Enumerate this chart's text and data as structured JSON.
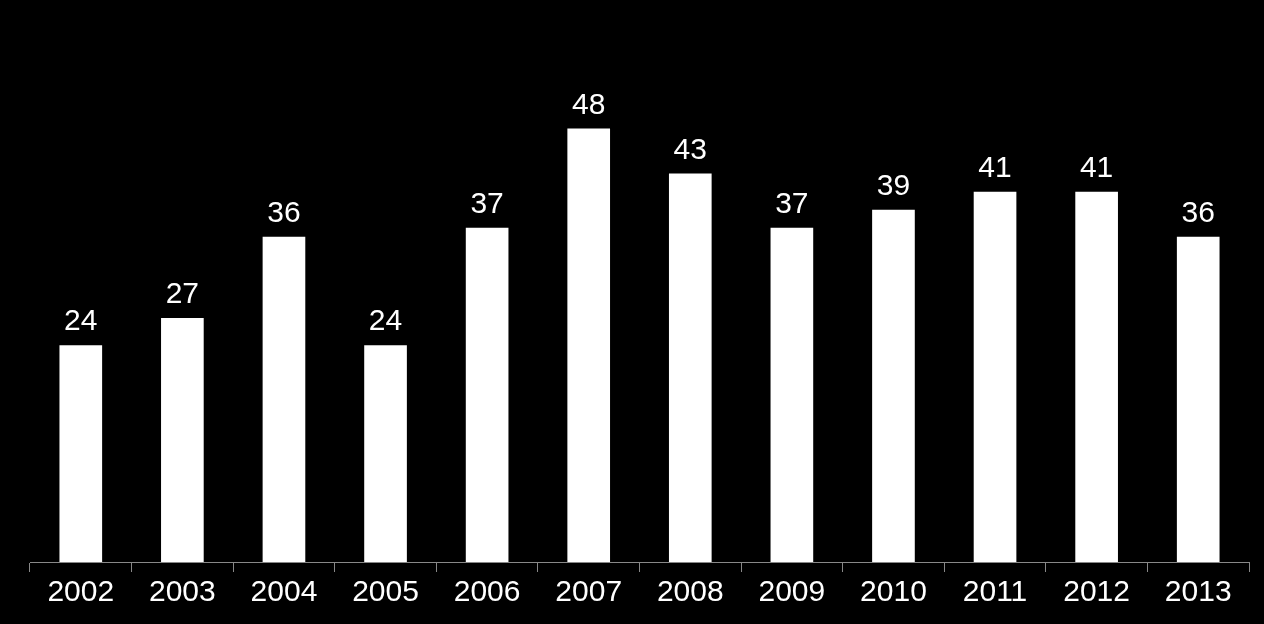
{
  "chart_data": {
    "type": "bar",
    "categories": [
      "2002",
      "2003",
      "2004",
      "2005",
      "2006",
      "2007",
      "2008",
      "2009",
      "2010",
      "2011",
      "2012",
      "2013"
    ],
    "values": [
      24,
      27,
      36,
      24,
      37,
      48,
      43,
      37,
      39,
      41,
      41,
      36
    ],
    "color": "#ffffff",
    "data_labels": true,
    "grid": false,
    "legend": false
  }
}
